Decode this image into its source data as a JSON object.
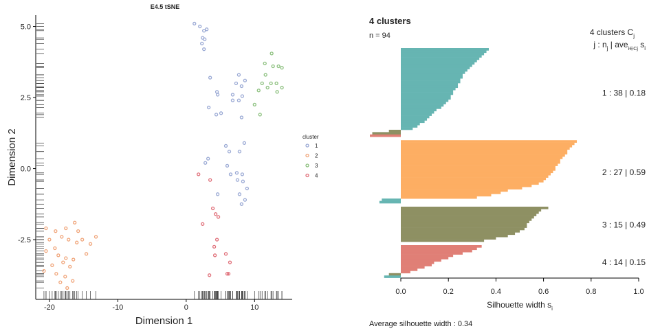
{
  "chart_data": [
    {
      "type": "scatter",
      "title": "E4.5 tSNE",
      "xlabel": "Dimension 1",
      "ylabel": "Dimension 2",
      "xlim": [
        -22,
        15.5
      ],
      "ylim": [
        -4.6,
        5.4
      ],
      "xticks": [
        -20,
        -10,
        0,
        10
      ],
      "xtick_labels": [
        "-20",
        "-10",
        "0",
        "10"
      ],
      "yticks": [
        5.0,
        2.5,
        0.0,
        -2.5
      ],
      "ytick_labels": [
        "5.0",
        "2.5",
        "0.0",
        "-2.5"
      ],
      "grid": false,
      "rug": true,
      "legend": {
        "title": "cluster",
        "position": "right",
        "entries": [
          "1",
          "2",
          "3",
          "4"
        ]
      },
      "colors": {
        "1": "#9aa9d4",
        "2": "#f0a57a",
        "3": "#8cc07e",
        "4": "#e0707a"
      },
      "series": [
        {
          "name": "1",
          "points": [
            [
              1.2,
              5.1
            ],
            [
              2.0,
              5.0
            ],
            [
              2.6,
              4.85
            ],
            [
              3.0,
              4.9
            ],
            [
              2.4,
              4.6
            ],
            [
              2.7,
              4.55
            ],
            [
              2.3,
              4.4
            ],
            [
              2.6,
              4.2
            ],
            [
              3.5,
              3.2
            ],
            [
              4.5,
              2.7
            ],
            [
              4.6,
              2.6
            ],
            [
              7.3,
              3.0
            ],
            [
              7.7,
              3.3
            ],
            [
              8.6,
              3.1
            ],
            [
              8.1,
              2.9
            ],
            [
              6.8,
              2.6
            ],
            [
              6.8,
              2.4
            ],
            [
              7.7,
              2.4
            ],
            [
              8.2,
              2.55
            ],
            [
              3.3,
              2.15
            ],
            [
              4.4,
              1.9
            ],
            [
              5.1,
              1.95
            ],
            [
              8.1,
              1.8
            ],
            [
              8.5,
              0.9
            ],
            [
              5.8,
              0.8
            ],
            [
              6.3,
              0.6
            ],
            [
              7.8,
              0.6
            ],
            [
              3.2,
              0.35
            ],
            [
              2.8,
              0.2
            ],
            [
              6.0,
              0.1
            ],
            [
              7.4,
              -0.15
            ],
            [
              8.2,
              -0.2
            ],
            [
              6.5,
              -0.2
            ],
            [
              7.5,
              -0.4
            ],
            [
              8.3,
              -0.45
            ],
            [
              8.9,
              -0.7
            ],
            [
              7.8,
              -0.9
            ],
            [
              4.6,
              -0.9
            ],
            [
              8.6,
              -1.1
            ],
            [
              8.1,
              -1.25
            ]
          ]
        },
        {
          "name": "2",
          "points": [
            [
              -20.5,
              -2.1
            ],
            [
              -16.3,
              -1.9
            ],
            [
              -19.1,
              -2.2
            ],
            [
              -17.6,
              -2.1
            ],
            [
              -15.8,
              -2.2
            ],
            [
              -18.2,
              -2.4
            ],
            [
              -20.0,
              -2.5
            ],
            [
              -17.2,
              -2.5
            ],
            [
              -16.0,
              -2.6
            ],
            [
              -15.2,
              -2.5
            ],
            [
              -13.2,
              -2.4
            ],
            [
              -14.0,
              -2.65
            ],
            [
              -19.2,
              -2.8
            ],
            [
              -20.5,
              -2.9
            ],
            [
              -18.7,
              -3.05
            ],
            [
              -17.6,
              -3.15
            ],
            [
              -16.5,
              -3.2
            ],
            [
              -18.0,
              -3.3
            ],
            [
              -17.0,
              -3.45
            ],
            [
              -19.6,
              -3.4
            ],
            [
              -14.6,
              -3.0
            ],
            [
              -20.8,
              -3.6
            ],
            [
              -19.0,
              -3.7
            ],
            [
              -17.7,
              -3.8
            ],
            [
              -16.6,
              -3.95
            ],
            [
              -18.4,
              -4.0
            ],
            [
              -17.4,
              -4.2
            ]
          ]
        },
        {
          "name": "3",
          "points": [
            [
              12.5,
              4.05
            ],
            [
              11.5,
              3.7
            ],
            [
              12.7,
              3.6
            ],
            [
              13.5,
              3.6
            ],
            [
              14.0,
              3.55
            ],
            [
              11.6,
              3.3
            ],
            [
              10.6,
              2.75
            ],
            [
              11.1,
              3.0
            ],
            [
              12.4,
              3.0
            ],
            [
              13.2,
              3.0
            ],
            [
              11.9,
              2.85
            ],
            [
              14.0,
              2.85
            ],
            [
              13.3,
              2.7
            ],
            [
              10.0,
              2.25
            ],
            [
              10.8,
              1.9
            ]
          ]
        },
        {
          "name": "4",
          "points": [
            [
              1.8,
              -0.2
            ],
            [
              3.5,
              -0.4
            ],
            [
              3.9,
              -1.4
            ],
            [
              4.3,
              -1.6
            ],
            [
              4.7,
              -1.7
            ],
            [
              2.4,
              -1.95
            ],
            [
              4.5,
              -2.5
            ],
            [
              4.1,
              -2.75
            ],
            [
              4.2,
              -3.05
            ],
            [
              5.8,
              -3.0
            ],
            [
              6.4,
              -3.3
            ],
            [
              3.4,
              -3.75
            ],
            [
              6.0,
              -3.7
            ],
            [
              6.2,
              -3.7
            ]
          ]
        }
      ]
    },
    {
      "type": "bar",
      "orientation": "horizontal",
      "title": "4 clusters",
      "subtitle": "n = 94",
      "xlabel": "Silhouette width s",
      "xlabel_sub": "i",
      "xlim": [
        0,
        1.0
      ],
      "xticks": [
        0,
        0.2,
        0.4,
        0.6,
        0.8,
        1.0
      ],
      "xtick_labels": [
        "0.0",
        "0.2",
        "0.4",
        "0.6",
        "0.8",
        "1.0"
      ],
      "legend_header_line1": "4  clusters  C",
      "legend_header_line1_sub": "j",
      "legend_header_line2": "j :  n",
      "legend_header_line2_sub": "j",
      "legend_header_line2_mid": " | ave",
      "legend_header_line2_sub2": "i∈Cj",
      "legend_header_line2_end": "  s",
      "legend_header_line2_sub3": "i",
      "footer": "Average silhouette width :  0.34",
      "colors": {
        "1": "#66b5b2",
        "2": "#fdae63",
        "3": "#8e9063",
        "4": "#e07f76"
      },
      "clusters": [
        {
          "id": "1",
          "label": "1 :  38  |  0.18",
          "n": 38,
          "avg": 0.18,
          "color": "1",
          "values": [
            0.37,
            0.36,
            0.35,
            0.34,
            0.33,
            0.32,
            0.31,
            0.3,
            0.29,
            0.28,
            0.27,
            0.26,
            0.26,
            0.25,
            0.25,
            0.24,
            0.24,
            0.23,
            0.22,
            0.22,
            0.21,
            0.21,
            0.2,
            0.19,
            0.18,
            0.17,
            0.15,
            0.14,
            0.13,
            0.12,
            0.11,
            0.1,
            0.08,
            0.07,
            0.05,
            -0.05,
            -0.12,
            -0.13
          ]
        },
        {
          "id": "2",
          "label": "2 :  27  |  0.59",
          "n": 27,
          "avg": 0.59,
          "color": "2",
          "values": [
            0.74,
            0.73,
            0.72,
            0.71,
            0.7,
            0.7,
            0.69,
            0.68,
            0.67,
            0.67,
            0.66,
            0.65,
            0.65,
            0.64,
            0.63,
            0.62,
            0.61,
            0.6,
            0.58,
            0.55,
            0.51,
            0.45,
            0.42,
            0.38,
            0.32,
            -0.08,
            -0.09
          ]
        },
        {
          "id": "3",
          "label": "3 :  15  |  0.49",
          "n": 15,
          "avg": 0.49,
          "color": "3",
          "values": [
            0.62,
            0.59,
            0.58,
            0.57,
            0.56,
            0.55,
            0.54,
            0.53,
            0.53,
            0.52,
            0.5,
            0.48,
            0.45,
            0.4,
            0.35
          ]
        },
        {
          "id": "4",
          "label": "4 :  14  |  0.15",
          "n": 14,
          "avg": 0.15,
          "color": "4",
          "values": [
            0.34,
            0.32,
            0.3,
            0.26,
            0.22,
            0.2,
            0.17,
            0.14,
            0.13,
            0.1,
            0.07,
            0.04,
            -0.05,
            -0.07
          ]
        }
      ]
    }
  ]
}
